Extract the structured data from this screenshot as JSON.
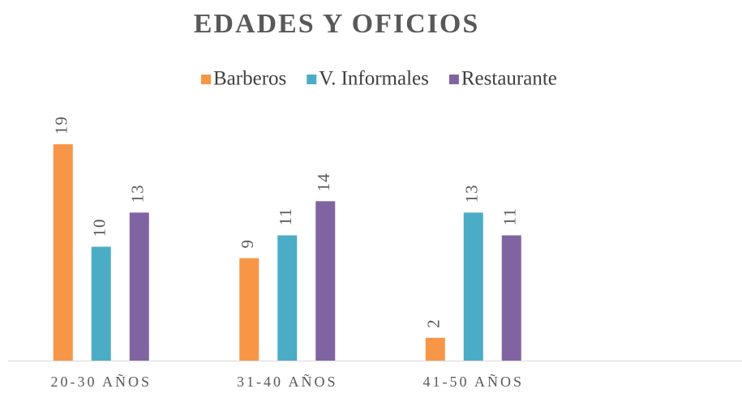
{
  "chart_data": {
    "type": "bar",
    "title": "EDADES Y OFICIOS",
    "categories": [
      "20-30 AÑOS",
      "31-40 AÑOS",
      "41-50 AÑOS"
    ],
    "series": [
      {
        "name": "Barberos",
        "color": "#f79646",
        "values": [
          19,
          9,
          2
        ]
      },
      {
        "name": "V. Informales",
        "color": "#4bacc6",
        "values": [
          10,
          11,
          13
        ]
      },
      {
        "name": "Restaurante",
        "color": "#8064a2",
        "values": [
          13,
          14,
          11
        ]
      }
    ],
    "ylim": [
      0,
      20
    ],
    "grid": false,
    "legend": "top"
  }
}
